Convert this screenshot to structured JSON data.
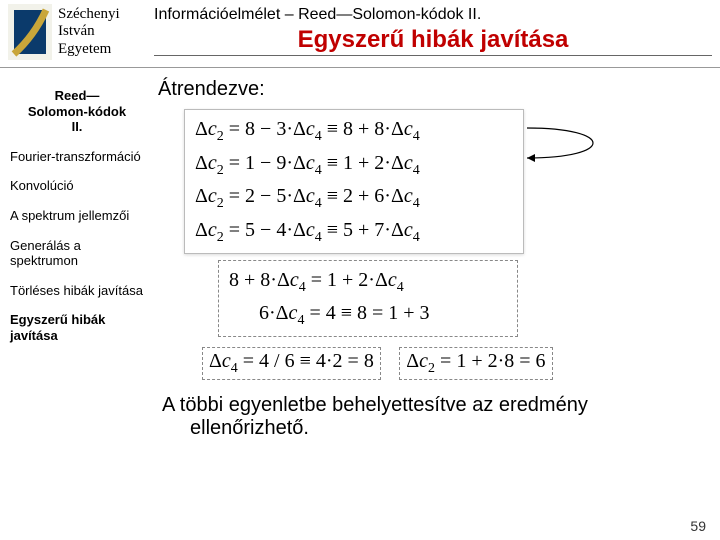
{
  "header": {
    "university": [
      "Széchenyi",
      "István",
      "Egyetem"
    ],
    "doc_title": "Információelmélet – Reed—Solomon-kódok II.",
    "page_title": "Egyszerű hibák javítása",
    "logo_colors": {
      "bg": "#f2f2ea",
      "square": "#0b3a6b",
      "arc": "#c9a63a"
    }
  },
  "sidebar": [
    {
      "label": "Reed—\nSolomon-kódok\nII.",
      "style": "active"
    },
    {
      "label": "Fourier-transzformáció",
      "style": ""
    },
    {
      "label": "Konvolúció",
      "style": ""
    },
    {
      "label": "A spektrum jellemzői",
      "style": ""
    },
    {
      "label": "Generálás a spektrumon",
      "style": ""
    },
    {
      "label": "Törléses hibák javítása",
      "style": ""
    },
    {
      "label": "Egyszerű hibák javítása",
      "style": "current"
    }
  ],
  "content": {
    "intro": "Átrendezve:",
    "eq_group1": [
      "Δc₂ = 8 − 3·Δc₄ ≡ 8 + 8·Δc₄",
      "Δc₂ = 1 − 9·Δc₄ ≡ 1 + 2·Δc₄",
      "Δc₂ = 2 − 5·Δc₄ ≡ 2 + 6·Δc₄",
      "Δc₂ = 5 − 4·Δc₄ ≡ 5 + 7·Δc₄"
    ],
    "eq_group2": [
      "8 + 8·Δc₄ = 1 + 2·Δc₄",
      "6·Δc₄ = 4 ≡ 8 = 1 + 3"
    ],
    "eq_result1": "Δc₄ = 4 / 6 ≡ 4·2 = 8",
    "eq_result2": "Δc₂ = 1 + 2·8 = 6",
    "conclusion": [
      "A többi egyenletbe behelyettesítve az eredmény",
      "ellenőrizhető."
    ],
    "page_number": "59"
  },
  "style": {
    "title_color": "#c00000",
    "box_border": "#bbbbbb",
    "dashed_border": "#888888",
    "body_font": "Arial",
    "math_font": "Times New Roman"
  }
}
